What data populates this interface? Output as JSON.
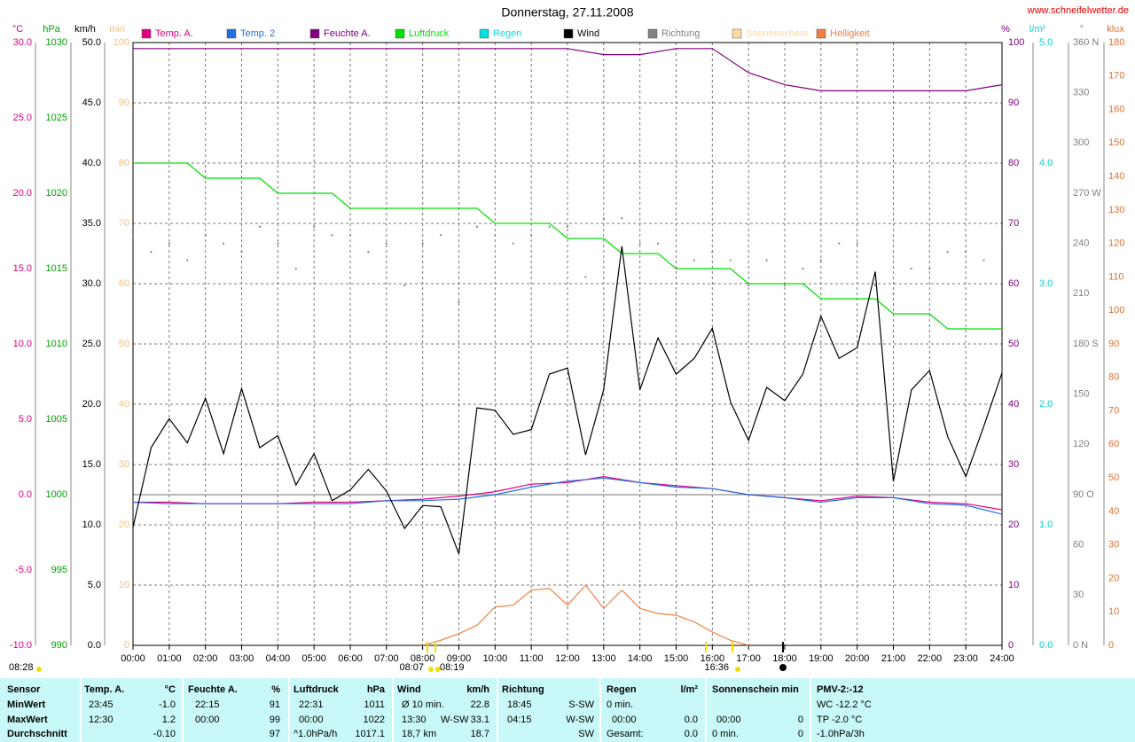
{
  "source": "www.schneifelwetter.de",
  "annotations": [
    "08:28",
    "08:07",
    "08:19",
    "16:36"
  ],
  "chart_data": {
    "type": "line",
    "title": "Donnerstag, 27.11.2008",
    "grid": true,
    "xlim": [
      0,
      24
    ],
    "xticks": [
      {
        "value": 0,
        "label": "00:00"
      },
      {
        "value": 1,
        "label": "01:00"
      },
      {
        "value": 2,
        "label": "02:00"
      },
      {
        "value": 3,
        "label": "03:00"
      },
      {
        "value": 4,
        "label": "04:00"
      },
      {
        "value": 5,
        "label": "05:00"
      },
      {
        "value": 6,
        "label": "06:00"
      },
      {
        "value": 7,
        "label": "07:00"
      },
      {
        "value": 8,
        "label": "08:00"
      },
      {
        "value": 9,
        "label": "09:00"
      },
      {
        "value": 10,
        "label": "10:00"
      },
      {
        "value": 11,
        "label": "11:00"
      },
      {
        "value": 12,
        "label": "12:00"
      },
      {
        "value": 13,
        "label": "13:00"
      },
      {
        "value": 14,
        "label": "14:00"
      },
      {
        "value": 15,
        "label": "15:00"
      },
      {
        "value": 16,
        "label": "16:00"
      },
      {
        "value": 17,
        "label": "17:00"
      },
      {
        "value": 18,
        "label": "18:00"
      },
      {
        "value": 19,
        "label": "19:00"
      },
      {
        "value": 20,
        "label": "20:00"
      },
      {
        "value": 21,
        "label": "21:00"
      },
      {
        "value": 22,
        "label": "22:00"
      },
      {
        "value": 23,
        "label": "23:00"
      },
      {
        "value": 24,
        "label": "24:00"
      }
    ],
    "axes": [
      {
        "unit": "°C",
        "color": "#e0007f",
        "lim": [
          -10,
          30
        ],
        "ticks": [
          {
            "value": 30,
            "label": "30.0"
          },
          {
            "value": 25,
            "label": "25.0"
          },
          {
            "value": 20,
            "label": "20.0"
          },
          {
            "value": 15,
            "label": "15.0"
          },
          {
            "value": 10,
            "label": "10.0"
          },
          {
            "value": 5,
            "label": "5.0"
          },
          {
            "value": 0,
            "label": "0.0"
          },
          {
            "value": -5,
            "label": "-5.0"
          },
          {
            "value": -10,
            "label": "-10.0"
          }
        ],
        "series": [
          {
            "name": "Temp. A.",
            "color": "#e0007f",
            "style": "line",
            "x": [
              0,
              1,
              2,
              3,
              4,
              5,
              6,
              7,
              8,
              9,
              10,
              11,
              12,
              13,
              14,
              15,
              16,
              17,
              18,
              19,
              20,
              21,
              22,
              23,
              24
            ],
            "values": [
              -0.5,
              -0.5,
              -0.6,
              -0.6,
              -0.6,
              -0.5,
              -0.5,
              -0.4,
              -0.3,
              -0.1,
              0.2,
              0.7,
              0.8,
              1.2,
              0.8,
              0.6,
              0.4,
              0.0,
              -0.2,
              -0.4,
              -0.1,
              -0.2,
              -0.5,
              -0.6,
              -1.0
            ]
          },
          {
            "name": "Temp. 2",
            "color": "#2070e0",
            "style": "line",
            "x": [
              0,
              1,
              2,
              3,
              4,
              5,
              6,
              7,
              8,
              9,
              10,
              11,
              12,
              13,
              14,
              15,
              16,
              17,
              18,
              19,
              20,
              21,
              22,
              23,
              24
            ],
            "values": [
              -0.5,
              -0.6,
              -0.6,
              -0.6,
              -0.6,
              -0.6,
              -0.6,
              -0.4,
              -0.4,
              -0.3,
              0.0,
              0.5,
              0.9,
              1.1,
              0.8,
              0.5,
              0.4,
              0.0,
              -0.2,
              -0.5,
              -0.2,
              -0.2,
              -0.6,
              -0.7,
              -1.3
            ]
          }
        ]
      },
      {
        "unit": "hPa",
        "color": "#00a000",
        "lim": [
          990,
          1030
        ],
        "ticks": [
          1030,
          1025,
          1020,
          1015,
          1010,
          1005,
          1000,
          995,
          990
        ],
        "series": [
          {
            "name": "Luftdruck",
            "color": "#00e000",
            "style": "line",
            "x": [
              0,
              0.5,
              1,
              1.5,
              2,
              2.5,
              3,
              3.5,
              4,
              4.5,
              5,
              5.5,
              6,
              6.5,
              7,
              7.5,
              8,
              8.5,
              9,
              9.5,
              10,
              10.5,
              11,
              11.5,
              12,
              12.5,
              13,
              13.5,
              14,
              14.5,
              15,
              15.5,
              16,
              16.5,
              17,
              17.5,
              18,
              18.5,
              19,
              19.5,
              20,
              20.5,
              21,
              21.5,
              22,
              22.5,
              23,
              23.5,
              24
            ],
            "values": [
              1022,
              1022,
              1022,
              1022,
              1021,
              1021,
              1021,
              1021,
              1020,
              1020,
              1020,
              1020,
              1019,
              1019,
              1019,
              1019,
              1019,
              1019,
              1019,
              1019,
              1018,
              1018,
              1018,
              1018,
              1017,
              1017,
              1017,
              1016,
              1016,
              1016,
              1015,
              1015,
              1015,
              1015,
              1014,
              1014,
              1014,
              1014,
              1013,
              1013,
              1013,
              1013,
              1012,
              1012,
              1012,
              1011,
              1011,
              1011,
              1011
            ]
          }
        ]
      },
      {
        "unit": "km/h",
        "color": "#000000",
        "lim": [
          0,
          50
        ],
        "grid": true,
        "ticks": [
          {
            "value": 50,
            "label": "50.0"
          },
          {
            "value": 45,
            "label": "45.0"
          },
          {
            "value": 40,
            "label": "40.0"
          },
          {
            "value": 35,
            "label": "35.0"
          },
          {
            "value": 30,
            "label": "30.0"
          },
          {
            "value": 25,
            "label": "25.0"
          },
          {
            "value": 20,
            "label": "20.0"
          },
          {
            "value": 15,
            "label": "15.0"
          },
          {
            "value": 10,
            "label": "10.0"
          },
          {
            "value": 5,
            "label": "5.0"
          },
          {
            "value": 0,
            "label": "0.0"
          }
        ],
        "series": [
          {
            "name": "Wind",
            "color": "#000000",
            "style": "line",
            "x": [
              0,
              0.5,
              1,
              1.5,
              2,
              2.5,
              3,
              3.5,
              4,
              4.5,
              5,
              5.5,
              6,
              6.5,
              7,
              7.5,
              8,
              8.5,
              9,
              9.5,
              10,
              10.5,
              11,
              11.5,
              12,
              12.5,
              13,
              13.5,
              14,
              14.5,
              15,
              15.5,
              16,
              16.5,
              17,
              17.5,
              18,
              18.5,
              19,
              19.5,
              20,
              20.5,
              21,
              21.5,
              22,
              22.5,
              23,
              23.5,
              24
            ],
            "values": [
              9.8,
              16.4,
              18.8,
              16.8,
              20.5,
              15.9,
              21.3,
              16.4,
              17.4,
              13.3,
              15.9,
              12.0,
              12.9,
              14.6,
              12.8,
              9.7,
              11.6,
              11.5,
              7.6,
              19.7,
              19.5,
              17.5,
              17.9,
              22.5,
              23.0,
              15.8,
              21.2,
              33.1,
              21.2,
              25.5,
              22.5,
              23.8,
              26.3,
              20.2,
              17.0,
              21.4,
              20.3,
              22.5,
              27.3,
              23.8,
              24.7,
              31.0,
              13.6,
              21.2,
              22.8,
              17.3,
              14.0,
              18.2,
              22.6
            ]
          }
        ]
      },
      {
        "unit": "min",
        "color": "#f0c080",
        "lim": [
          0,
          100
        ],
        "ticks": [
          100,
          90,
          80,
          70,
          60,
          50,
          40,
          30,
          20,
          10,
          0
        ],
        "series": [
          {
            "name": "Sonnenschein",
            "color": "#ffd8a0"
          }
        ]
      },
      {
        "unit": "%",
        "color": "#800080",
        "lim": [
          0,
          100
        ],
        "ticks": [
          100,
          90,
          80,
          70,
          60,
          50,
          40,
          30,
          20,
          10,
          0
        ],
        "series": [
          {
            "name": "Feuchte A.",
            "color": "#800080",
            "style": "line",
            "x": [
              0,
              1,
              2,
              3,
              4,
              5,
              6,
              7,
              8,
              9,
              10,
              11,
              12,
              13,
              14,
              15,
              16,
              17,
              18,
              19,
              20,
              21,
              22,
              23,
              24
            ],
            "values": [
              99,
              99,
              99,
              99,
              99,
              99,
              99,
              99,
              99,
              99,
              99,
              99,
              99,
              98,
              98,
              99,
              99,
              95,
              93,
              92,
              92,
              92,
              92,
              92,
              93
            ]
          }
        ]
      },
      {
        "unit": "l/m²",
        "color": "#00d0d0",
        "lim": [
          0,
          5
        ],
        "ticks": [
          {
            "value": 5,
            "label": "5.0"
          },
          {
            "value": 4,
            "label": "4.0"
          },
          {
            "value": 3,
            "label": "3.0"
          },
          {
            "value": 2,
            "label": "2.0"
          },
          {
            "value": 1,
            "label": "1.0"
          },
          {
            "value": 0,
            "label": "0.0"
          }
        ],
        "series": [
          {
            "name": "Regen",
            "color": "#00e0e0"
          }
        ]
      },
      {
        "unit": "°",
        "color": "#808080",
        "lim": [
          0,
          360
        ],
        "ticks": [
          {
            "value": 360,
            "label": "360 N"
          },
          330,
          300,
          {
            "value": 270,
            "label": "270 W"
          },
          240,
          210,
          {
            "value": 180,
            "label": "180 S"
          },
          150,
          120,
          {
            "value": 90,
            "label": "90 O"
          },
          60,
          30,
          {
            "value": 0,
            "label": "0 N"
          }
        ],
        "series": [
          {
            "name": "Richtung",
            "color": "#808080",
            "style": "dots",
            "x": [
              0,
              0.5,
              1,
              1.5,
              2,
              2.5,
              3,
              3.5,
              4,
              4.5,
              5,
              5.5,
              6,
              6.5,
              7,
              7.5,
              8,
              8.5,
              9,
              9.5,
              10,
              10.5,
              11,
              11.5,
              12,
              12.5,
              13,
              13.5,
              14,
              14.5,
              15,
              15.5,
              16,
              16.5,
              17,
              17.5,
              18,
              18.5,
              19,
              19.5,
              20,
              20.5,
              21,
              21.5,
              22,
              22.5,
              23,
              23.5,
              24
            ],
            "values": [
              245,
              235,
              240,
              230,
              245,
              240,
              235,
              250,
              240,
              225,
              250,
              245,
              245,
              235,
              240,
              215,
              240,
              245,
              205,
              250,
              245,
              240,
              245,
              250,
              250,
              220,
              255,
              255,
              240,
              240,
              225,
              230,
              235,
              230,
              215,
              230,
              215,
              225,
              230,
              240,
              240,
              215,
              210,
              225,
              225,
              235,
              235,
              230,
              240
            ]
          }
        ]
      },
      {
        "unit": "klux",
        "color": "#e07030",
        "lim": [
          0,
          180
        ],
        "ticks": [
          180,
          170,
          160,
          150,
          140,
          130,
          120,
          110,
          100,
          90,
          80,
          70,
          60,
          50,
          40,
          30,
          20,
          10,
          0
        ],
        "series": [
          {
            "name": "Helligkeit",
            "color": "#f08040",
            "style": "line",
            "x": [
              0,
              0.5,
              1,
              1.5,
              2,
              2.5,
              3,
              3.5,
              4,
              4.5,
              5,
              5.5,
              6,
              6.5,
              7,
              7.5,
              8,
              8.5,
              9,
              9.5,
              10,
              10.5,
              11,
              11.5,
              12,
              12.5,
              13,
              13.5,
              14,
              14.5,
              15,
              15.5,
              16,
              16.5,
              17,
              17.5,
              18,
              18.5,
              19,
              19.5,
              20,
              20.5,
              21,
              21.5,
              22,
              22.5,
              23,
              23.5,
              24
            ],
            "values": [
              null,
              null,
              null,
              null,
              null,
              null,
              null,
              null,
              null,
              null,
              null,
              null,
              null,
              null,
              null,
              null,
              0,
              1.5,
              3.5,
              6,
              11.5,
              12,
              16.5,
              17,
              12,
              18,
              11,
              16.5,
              11,
              9.5,
              9,
              7,
              4,
              1.5,
              0,
              null,
              null,
              null,
              null,
              null,
              null,
              null,
              null,
              null,
              null,
              null,
              null,
              null,
              null
            ]
          }
        ]
      }
    ]
  },
  "table": {
    "header": [
      "Sensor",
      "Temp. A.",
      "°C",
      "Feuchte A.",
      "%",
      "Luftdruck",
      "hPa",
      "Wind",
      "km/h",
      "Richtung",
      "Regen",
      "l/m²",
      "Sonnenschein min",
      "PMV-2:-12"
    ],
    "rows": [
      [
        "MinWert",
        "23:45",
        "-1.0",
        "22:15",
        "91",
        "22:31",
        "1011",
        "Ø 10 min.",
        "22.8",
        "18:45",
        "S-SW",
        "0 min.",
        "WC -12.2 °C"
      ],
      [
        "MaxWert",
        "12:30",
        "1.2",
        "00:00",
        "99",
        "00:00",
        "1022",
        "13:30",
        "W-SW",
        "33.1",
        "04:15",
        "W-SW",
        "00:00",
        "0.0",
        "00:00",
        "0",
        "TP -2.0 °C"
      ],
      [
        "Durchschnitt",
        "-0.10",
        "97",
        "^1.0hPa/h",
        "1017.1",
        "18,7 km",
        "18.7",
        "SW",
        "Gesamt:",
        "0.0",
        "0 min.",
        "0",
        "-1.0hPa/3h"
      ]
    ]
  }
}
